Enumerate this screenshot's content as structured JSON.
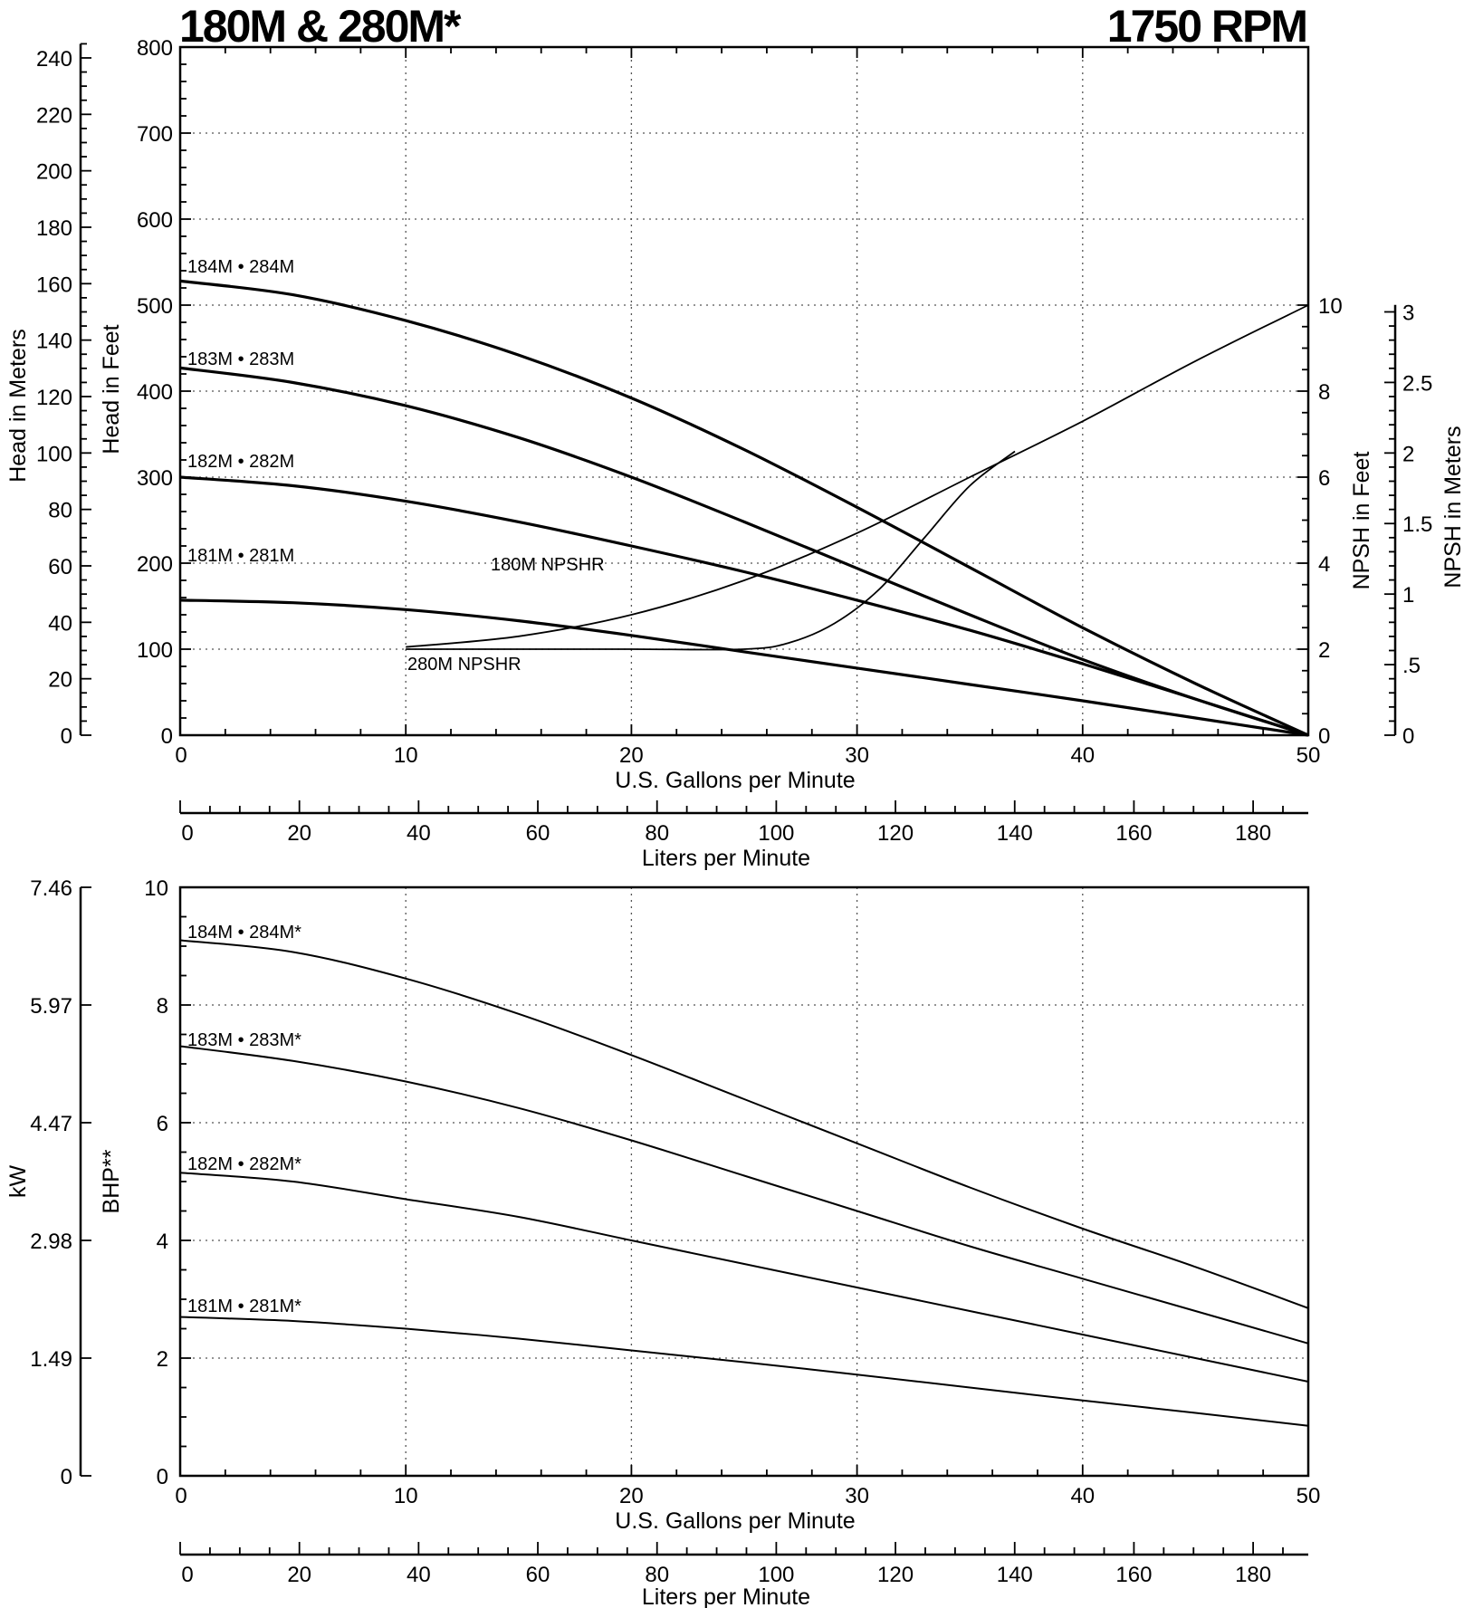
{
  "titles": {
    "left": "180M & 280M*",
    "right": "1750 RPM"
  },
  "chart_data": [
    {
      "type": "line",
      "title": "180M & 280M*",
      "xlabel": "U.S. Gallons per Minute",
      "xlabel_secondary": "Liters per Minute",
      "ylabel": "Head in Feet",
      "ylabel_secondary": "Head in Meters",
      "ylabel_right": "NPSH in Feet",
      "ylabel_right_secondary": "NPSH in Meters",
      "xlim": [
        0,
        50
      ],
      "ylim": [
        0,
        800
      ],
      "y_right_lim": [
        0,
        10
      ],
      "x_ticks": [
        "0",
        "10",
        "20",
        "30",
        "40",
        "50"
      ],
      "y_ticks": [
        "0",
        "100",
        "200",
        "300",
        "400",
        "500",
        "600",
        "700",
        "800"
      ],
      "lpm_ticks": [
        "0",
        "20",
        "40",
        "60",
        "80",
        "100",
        "120",
        "140",
        "160",
        "180"
      ],
      "meters_ticks": [
        "0",
        "20",
        "40",
        "60",
        "80",
        "100",
        "120",
        "140",
        "160",
        "180",
        "200",
        "220",
        "240"
      ],
      "npsh_ft_ticks": [
        "0",
        "2",
        "4",
        "6",
        "8",
        "10"
      ],
      "npsh_m_ticks": [
        "0",
        ".5",
        "1",
        "1.5",
        "2",
        "2.5",
        "3"
      ],
      "grid": true,
      "series": [
        {
          "name": "184M • 284M",
          "x": [
            0,
            5,
            10,
            15,
            20,
            25,
            30,
            35,
            40,
            45,
            50
          ],
          "y": [
            528,
            512,
            482,
            442,
            392,
            332,
            265,
            195,
            125,
            60,
            0
          ]
        },
        {
          "name": "183M • 283M",
          "x": [
            0,
            5,
            10,
            15,
            20,
            25,
            30,
            35,
            40,
            45,
            50
          ],
          "y": [
            427,
            410,
            383,
            346,
            300,
            248,
            194,
            140,
            88,
            42,
            0
          ]
        },
        {
          "name": "182M • 282M",
          "x": [
            0,
            5,
            10,
            15,
            20,
            25,
            30,
            35,
            40,
            45,
            50
          ],
          "y": [
            300,
            290,
            272,
            248,
            220,
            190,
            157,
            122,
            83,
            42,
            0
          ]
        },
        {
          "name": "181M • 281M",
          "x": [
            0,
            5,
            10,
            15,
            20,
            25,
            30,
            35,
            40,
            45,
            50
          ],
          "y": [
            157,
            154,
            146,
            133,
            116,
            97,
            78,
            59,
            40,
            20,
            0
          ]
        }
      ],
      "npsh_series": [
        {
          "name": "180M NPSHR",
          "x": [
            10,
            15,
            20,
            25,
            30,
            35,
            40,
            45,
            50
          ],
          "y": [
            2.05,
            2.3,
            2.8,
            3.6,
            4.7,
            6.0,
            7.3,
            8.7,
            10.0
          ]
        },
        {
          "name": "280M NPSHR",
          "x": [
            10,
            15,
            20,
            25,
            27,
            29,
            31,
            33,
            35,
            37
          ],
          "y": [
            2.0,
            2.0,
            2.0,
            2.0,
            2.15,
            2.6,
            3.4,
            4.6,
            5.8,
            6.6
          ]
        }
      ]
    },
    {
      "type": "line",
      "xlabel": "U.S. Gallons per Minute",
      "xlabel_secondary": "Liters per Minute",
      "ylabel": "BHP**",
      "ylabel_secondary": "kW",
      "xlim": [
        0,
        50
      ],
      "ylim": [
        0,
        10
      ],
      "x_ticks": [
        "0",
        "10",
        "20",
        "30",
        "40",
        "50"
      ],
      "y_ticks": [
        "0",
        "2",
        "4",
        "6",
        "8",
        "10"
      ],
      "kw_ticks": [
        "0",
        "1.49",
        "2.98",
        "4.47",
        "5.97",
        "7.46"
      ],
      "lpm_ticks": [
        "0",
        "20",
        "40",
        "60",
        "80",
        "100",
        "120",
        "140",
        "160",
        "180"
      ],
      "grid": true,
      "series": [
        {
          "name": "184M • 284M*",
          "x": [
            0,
            5,
            10,
            15,
            20,
            25,
            30,
            35,
            40,
            45,
            50
          ],
          "y": [
            9.1,
            8.9,
            8.45,
            7.85,
            7.15,
            6.4,
            5.65,
            4.9,
            4.2,
            3.55,
            2.85
          ]
        },
        {
          "name": "183M • 283M*",
          "x": [
            0,
            5,
            10,
            15,
            20,
            25,
            30,
            35,
            40,
            45,
            50
          ],
          "y": [
            7.3,
            7.05,
            6.7,
            6.25,
            5.7,
            5.1,
            4.5,
            3.9,
            3.35,
            2.8,
            2.25
          ]
        },
        {
          "name": "182M • 282M*",
          "x": [
            0,
            5,
            10,
            15,
            20,
            25,
            30,
            35,
            40,
            45,
            50
          ],
          "y": [
            5.15,
            5.0,
            4.7,
            4.4,
            4.0,
            3.6,
            3.2,
            2.8,
            2.4,
            2.0,
            1.6
          ]
        },
        {
          "name": "181M • 281M*",
          "x": [
            0,
            5,
            10,
            15,
            20,
            25,
            30,
            35,
            40,
            45,
            50
          ],
          "y": [
            2.7,
            2.63,
            2.5,
            2.33,
            2.13,
            1.93,
            1.72,
            1.5,
            1.28,
            1.07,
            0.85
          ]
        }
      ]
    }
  ]
}
